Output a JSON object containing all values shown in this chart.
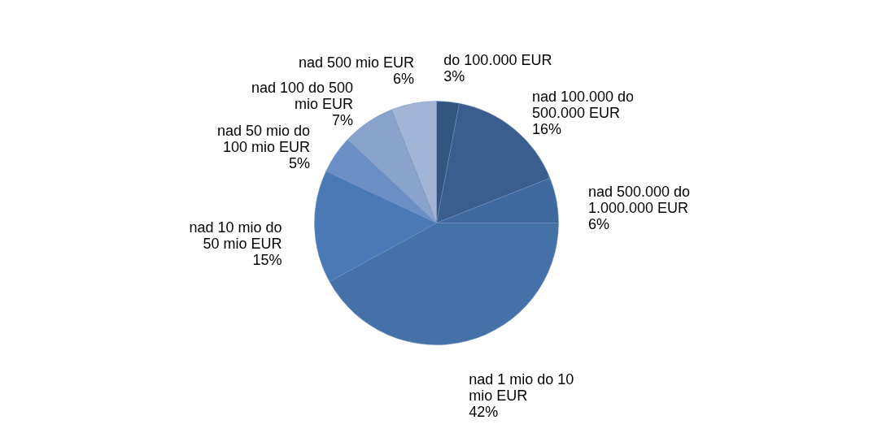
{
  "chart_data": {
    "type": "pie",
    "categories": [
      "do 100.000 EUR",
      "nad 100.000 do 500.000 EUR",
      "nad 500.000 do 1.000.000 EUR",
      "nad 1 mio do 10 mio EUR",
      "nad 10 mio do 50 mio EUR",
      "nad 50 mio do 100 mio EUR",
      "nad 100 do 500 mio EUR",
      "nad 500 mio EUR"
    ],
    "values": [
      3,
      16,
      6,
      42,
      15,
      5,
      7,
      6
    ],
    "value_labels": [
      "3%",
      "16%",
      "6%",
      "42%",
      "15%",
      "5%",
      "7%",
      "6%"
    ],
    "colors": [
      "#34557f",
      "#3a5f8f",
      "#3f6aa0",
      "#4571a9",
      "#4a7ab5",
      "#6a8fc4",
      "#8aa3cc",
      "#a3b5d6"
    ],
    "legend": false
  }
}
